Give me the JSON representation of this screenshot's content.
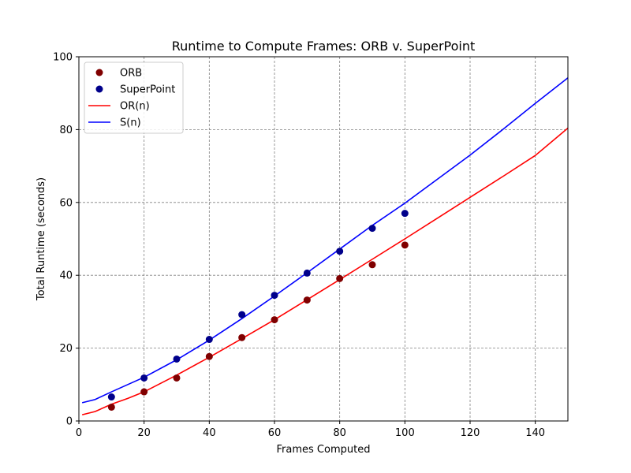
{
  "chart_data": {
    "type": "scatter",
    "title": "Runtime to Compute Frames: ORB v. SuperPoint",
    "xlabel": "Frames Computed",
    "ylabel": "Total Runtime (seconds)",
    "xlim": [
      0,
      150
    ],
    "ylim": [
      0,
      100
    ],
    "xticks": [
      0,
      20,
      40,
      60,
      80,
      100,
      120,
      140
    ],
    "yticks": [
      0,
      20,
      40,
      60,
      80,
      100
    ],
    "grid": true,
    "legend_position": "top-left",
    "scatter_series": [
      {
        "name": "ORB",
        "color": "#800000",
        "x": [
          10,
          20,
          30,
          40,
          50,
          60,
          70,
          80,
          90,
          100
        ],
        "y": [
          3.8,
          8.0,
          11.8,
          17.7,
          22.9,
          27.8,
          33.2,
          39.1,
          42.9,
          48.3
        ]
      },
      {
        "name": "SuperPoint",
        "color": "#00008b",
        "x": [
          10,
          20,
          30,
          40,
          50,
          60,
          70,
          80,
          90,
          100
        ],
        "y": [
          6.6,
          11.8,
          17.0,
          22.4,
          29.2,
          34.5,
          40.6,
          46.6,
          52.9,
          57.0
        ]
      }
    ],
    "line_series": [
      {
        "name": "OR(n)",
        "color": "#ff0000",
        "x": [
          1,
          5,
          10,
          15,
          20,
          30,
          40,
          50,
          60,
          70,
          80,
          90,
          100,
          110,
          120,
          130,
          140,
          150
        ],
        "y": [
          1.7,
          2.6,
          4.6,
          6.2,
          8.0,
          12.6,
          17.5,
          22.6,
          27.8,
          33.3,
          38.8,
          44.4,
          50.0,
          55.7,
          61.4,
          67.1,
          72.9,
          80.4
        ]
      },
      {
        "name": "S(n)",
        "color": "#0000ff",
        "x": [
          1,
          5,
          10,
          15,
          20,
          30,
          40,
          50,
          60,
          70,
          80,
          90,
          100,
          110,
          120,
          130,
          140,
          150
        ],
        "y": [
          5.0,
          5.9,
          8.0,
          10.0,
          12.0,
          16.8,
          22.2,
          28.1,
          34.3,
          40.7,
          47.2,
          53.7,
          59.8,
          66.4,
          73.0,
          80.0,
          87.2,
          94.2
        ]
      }
    ],
    "legend": [
      {
        "label": "ORB",
        "kind": "marker",
        "color": "#800000"
      },
      {
        "label": "SuperPoint",
        "kind": "marker",
        "color": "#00008b"
      },
      {
        "label": "OR(n)",
        "kind": "line",
        "color": "#ff0000"
      },
      {
        "label": "S(n)",
        "kind": "line",
        "color": "#0000ff"
      }
    ]
  }
}
